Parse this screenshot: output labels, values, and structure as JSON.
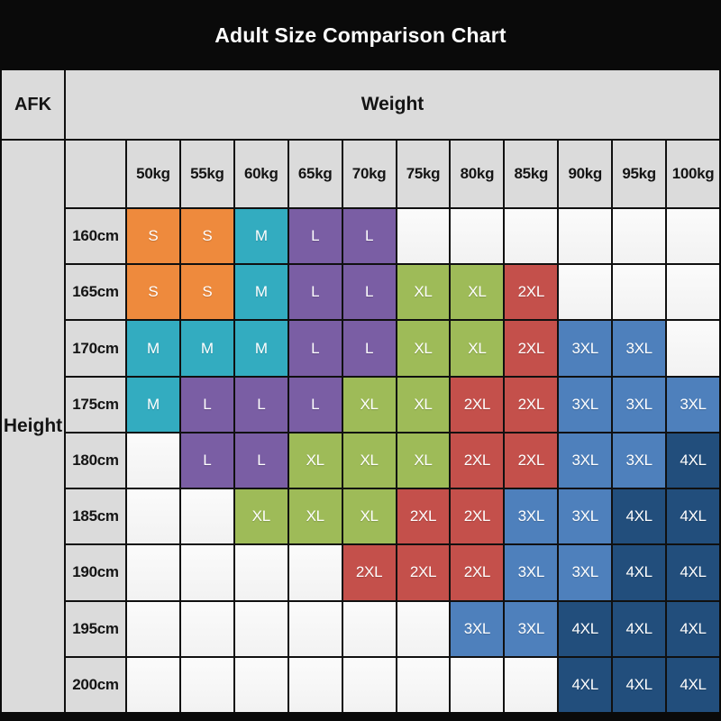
{
  "title": "Adult Size Comparison Chart",
  "corner_label": "AFK",
  "weight_axis_label": "Weight",
  "height_axis_label": "Height",
  "chart_data": {
    "type": "heatmap",
    "title": "Adult Size Comparison Chart",
    "xlabel": "Weight",
    "ylabel": "Height",
    "x_categories": [
      "50kg",
      "55kg",
      "60kg",
      "65kg",
      "70kg",
      "75kg",
      "80kg",
      "85kg",
      "90kg",
      "95kg",
      "100kg"
    ],
    "y_categories": [
      "160cm",
      "165cm",
      "170cm",
      "175cm",
      "180cm",
      "185cm",
      "190cm",
      "195cm",
      "200cm"
    ],
    "values": [
      [
        "S",
        "S",
        "M",
        "L",
        "L",
        "",
        "",
        "",
        "",
        "",
        ""
      ],
      [
        "S",
        "S",
        "M",
        "L",
        "L",
        "XL",
        "XL",
        "2XL",
        "",
        "",
        ""
      ],
      [
        "M",
        "M",
        "M",
        "L",
        "L",
        "XL",
        "XL",
        "2XL",
        "3XL",
        "3XL",
        ""
      ],
      [
        "M",
        "L",
        "L",
        "L",
        "XL",
        "XL",
        "2XL",
        "2XL",
        "3XL",
        "3XL",
        "3XL"
      ],
      [
        "",
        "L",
        "L",
        "XL",
        "XL",
        "XL",
        "2XL",
        "2XL",
        "3XL",
        "3XL",
        "4XL"
      ],
      [
        "",
        "",
        "XL",
        "XL",
        "XL",
        "2XL",
        "2XL",
        "3XL",
        "3XL",
        "4XL",
        "4XL"
      ],
      [
        "",
        "",
        "",
        "",
        "2XL",
        "2XL",
        "2XL",
        "3XL",
        "3XL",
        "4XL",
        "4XL"
      ],
      [
        "",
        "",
        "",
        "",
        "",
        "",
        "3XL",
        "3XL",
        "4XL",
        "4XL",
        "4XL"
      ],
      [
        "",
        "",
        "",
        "",
        "",
        "",
        "",
        "",
        "4XL",
        "4XL",
        "4XL"
      ]
    ],
    "cell_colors": {
      "S": "#ee8a3d",
      "M": "#33acc0",
      "L": "#7a5ea4",
      "XL": "#9ebb58",
      "2XL": "#c4504b",
      "3XL": "#4e80bc",
      "4XL": "#224e7c"
    }
  },
  "colors": {
    "bar_background": "#0a0a0a",
    "header_gray": "#dbdbdb",
    "empty_cell": "#f5f5f5",
    "grid_line": "#101010",
    "title_text": "#ffffff",
    "cell_text": "#ffffff",
    "label_text": "#141414"
  }
}
